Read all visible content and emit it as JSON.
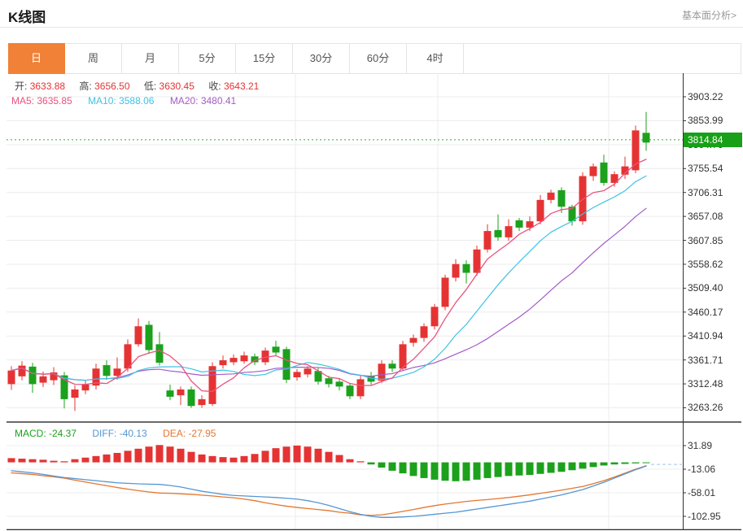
{
  "header": {
    "title": "K线图",
    "analysis_link": "基本面分析>"
  },
  "tabs": [
    {
      "name": "day",
      "label": "日",
      "active": true
    },
    {
      "name": "week",
      "label": "周",
      "active": false
    },
    {
      "name": "month",
      "label": "月",
      "active": false
    },
    {
      "name": "5min",
      "label": "5分",
      "active": false
    },
    {
      "name": "15min",
      "label": "15分",
      "active": false
    },
    {
      "name": "30min",
      "label": "30分",
      "active": false
    },
    {
      "name": "60min",
      "label": "60分",
      "active": false
    },
    {
      "name": "4hour",
      "label": "4时",
      "active": false
    }
  ],
  "legend": {
    "open_label": "开:",
    "open": "3633.88",
    "high_label": "高:",
    "high": "3656.50",
    "low_label": "低:",
    "low": "3630.45",
    "close_label": "收:",
    "close": "3643.21",
    "ma5": "MA5: 3635.85",
    "ma10": "MA10: 3588.06",
    "ma20": "MA20: 3480.41"
  },
  "macd_legend": {
    "macd": "MACD: -24.37",
    "diff": "DIFF: -40.13",
    "dea": "DEA: -27.95"
  },
  "price_axis": {
    "last_price": "3814.84"
  },
  "colors": {
    "up": "#e53333",
    "down": "#1ca11c",
    "accent_tab": "#f08136",
    "badge": "#18a018",
    "price_line": "#2ab42a",
    "ma5": "#e9537e",
    "ma10": "#3fc3e3",
    "ma20": "#a35cc5",
    "diff": "#5596d2",
    "dea": "#e5762e",
    "dash_line": "#9dc3e6",
    "grid": "#ececec",
    "axis": "#333333",
    "panel_border": "#111111"
  },
  "chart_data": [
    {
      "type": "candlestick",
      "title": "K线图 日线",
      "legend_display": {
        "open": 3633.88,
        "high": 3656.5,
        "low": 3630.45,
        "close": 3643.21,
        "ma5": 3635.85,
        "ma10": 3588.06,
        "ma20": 3480.41
      },
      "last_price": 3814.84,
      "ylim": [
        3263.26,
        3903.22
      ],
      "y_ticks": [
        3903.22,
        3853.99,
        3804.76,
        3755.54,
        3706.31,
        3657.08,
        3607.85,
        3558.62,
        3509.4,
        3460.17,
        3410.94,
        3361.71,
        3312.48,
        3263.26
      ],
      "grid": true,
      "overlays": [
        "MA5",
        "MA10",
        "MA20"
      ],
      "open": [
        3312,
        3328,
        3348,
        3315,
        3320,
        3330,
        3284,
        3299,
        3309,
        3351,
        3329,
        3344,
        3394,
        3434,
        3394,
        3299,
        3289,
        3301,
        3269,
        3271,
        3351,
        3357,
        3359,
        3369,
        3357,
        3389,
        3384,
        3326,
        3332,
        3339,
        3324,
        3317,
        3309,
        3287,
        3329,
        3319,
        3354,
        3344,
        3397,
        3407,
        3431,
        3471,
        3531,
        3559,
        3541,
        3589,
        3629,
        3614,
        3649,
        3634,
        3647,
        3691,
        3711,
        3677,
        3647,
        3740,
        3768,
        3726,
        3743,
        3752,
        3829
      ],
      "close": [
        3340,
        3350,
        3312,
        3328,
        3336,
        3281,
        3301,
        3311,
        3344,
        3329,
        3344,
        3394,
        3431,
        3382,
        3356,
        3286,
        3301,
        3267,
        3281,
        3349,
        3361,
        3366,
        3371,
        3357,
        3381,
        3377,
        3321,
        3337,
        3344,
        3317,
        3312,
        3307,
        3287,
        3322,
        3317,
        3354,
        3344,
        3394,
        3407,
        3431,
        3471,
        3531,
        3559,
        3541,
        3589,
        3627,
        3614,
        3637,
        3634,
        3647,
        3691,
        3706,
        3677,
        3647,
        3740,
        3760,
        3726,
        3744,
        3760,
        3834,
        3809
      ],
      "high": [
        3349,
        3359,
        3356,
        3338,
        3347,
        3337,
        3309,
        3319,
        3354,
        3361,
        3367,
        3404,
        3447,
        3442,
        3419,
        3311,
        3307,
        3307,
        3289,
        3357,
        3371,
        3373,
        3379,
        3375,
        3387,
        3401,
        3389,
        3343,
        3349,
        3345,
        3329,
        3323,
        3314,
        3329,
        3337,
        3361,
        3361,
        3401,
        3414,
        3437,
        3477,
        3537,
        3569,
        3567,
        3597,
        3641,
        3661,
        3651,
        3654,
        3657,
        3701,
        3712,
        3717,
        3681,
        3748,
        3766,
        3784,
        3750,
        3780,
        3844,
        3872
      ],
      "low": [
        3300,
        3320,
        3294,
        3306,
        3310,
        3262,
        3257,
        3291,
        3301,
        3321,
        3321,
        3337,
        3389,
        3374,
        3350,
        3279,
        3269,
        3263,
        3263,
        3267,
        3344,
        3351,
        3354,
        3351,
        3351,
        3371,
        3314,
        3319,
        3326,
        3311,
        3305,
        3299,
        3281,
        3281,
        3311,
        3314,
        3337,
        3339,
        3389,
        3399,
        3424,
        3464,
        3523,
        3519,
        3535,
        3583,
        3607,
        3607,
        3627,
        3627,
        3641,
        3684,
        3664,
        3638,
        3640,
        3730,
        3720,
        3718,
        3734,
        3746,
        3792
      ]
    },
    {
      "type": "bar",
      "title": "MACD",
      "legend_display": {
        "macd": -24.37,
        "diff": -40.13,
        "dea": -27.95
      },
      "ylim": [
        -102.95,
        31.89
      ],
      "y_ticks": [
        31.89,
        -13.06,
        -58.01,
        -102.95
      ],
      "grid": true,
      "hist": [
        8,
        7,
        6,
        5,
        3,
        2,
        6,
        9,
        12,
        15,
        18,
        22,
        26,
        30,
        33,
        30,
        26,
        20,
        15,
        12,
        10,
        9,
        12,
        16,
        22,
        27,
        30,
        32,
        30,
        26,
        20,
        14,
        6,
        2,
        -4,
        -10,
        -16,
        -21,
        -26,
        -30,
        -33,
        -35,
        -36,
        -35,
        -33,
        -30,
        -28,
        -26,
        -25,
        -24,
        -22,
        -20,
        -18,
        -15,
        -12,
        -9,
        -6,
        -4,
        -3,
        -2,
        -1
      ],
      "diff": [
        -16,
        -18,
        -20,
        -23,
        -26,
        -29,
        -31,
        -33,
        -35,
        -37,
        -39,
        -40,
        -41,
        -41.5,
        -42,
        -44,
        -47,
        -51,
        -55,
        -58,
        -61,
        -63,
        -64,
        -65,
        -66,
        -67,
        -68.5,
        -70,
        -73,
        -77,
        -82,
        -88,
        -94,
        -99,
        -103,
        -105,
        -105,
        -104,
        -103,
        -101,
        -99,
        -97,
        -95,
        -92,
        -89,
        -86,
        -83,
        -80,
        -77,
        -74,
        -70,
        -66,
        -62,
        -57,
        -52,
        -45,
        -38,
        -30,
        -22,
        -14,
        -7
      ],
      "dea": [
        -20,
        -21.5,
        -23,
        -25.5,
        -27.5,
        -30,
        -34,
        -37.5,
        -41,
        -44.5,
        -48,
        -51,
        -54,
        -56.5,
        -58.5,
        -59,
        -60,
        -61,
        -62.5,
        -64,
        -66,
        -67.5,
        -70,
        -73,
        -77,
        -80.5,
        -83.5,
        -86,
        -88,
        -90,
        -92,
        -95,
        -97,
        -100,
        -101,
        -100,
        -97,
        -93.5,
        -90,
        -86,
        -82.5,
        -79.5,
        -77,
        -74.5,
        -72.5,
        -71,
        -69,
        -67,
        -64.5,
        -62,
        -59,
        -56,
        -53,
        -49.5,
        -46,
        -40.5,
        -35,
        -28,
        -20.5,
        -13,
        -6.5
      ]
    }
  ]
}
